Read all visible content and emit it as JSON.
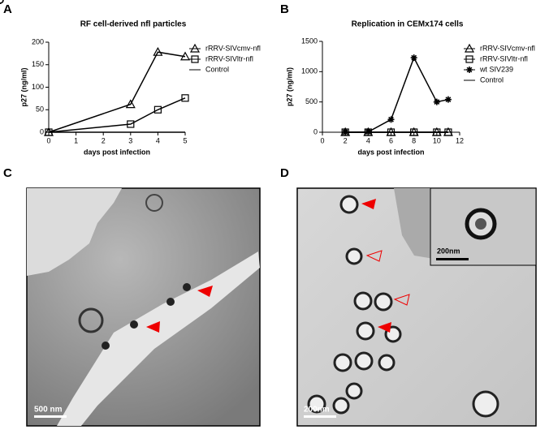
{
  "panels": [
    "A",
    "B",
    "C",
    "D"
  ],
  "images": {
    "c_scale": "500 nm",
    "d_scale": "200nm",
    "d_inset_scale": "200nm"
  },
  "chart_data": [
    {
      "type": "line",
      "title": "RF cell-derived nfl particles",
      "xlabel": "days post infection",
      "ylabel": "p27 (ng/ml)",
      "x": [
        0,
        3,
        4,
        5
      ],
      "xlim": [
        0,
        5
      ],
      "xticks": [
        0,
        1,
        2,
        3,
        4,
        5
      ],
      "ylim": [
        0,
        200
      ],
      "yticks": [
        0,
        50,
        100,
        150,
        200
      ],
      "series": [
        {
          "name": "rRRV-SIVcmv-nfl",
          "color": "#000000",
          "marker": "triangle",
          "values": [
            0,
            62,
            178,
            168
          ]
        },
        {
          "name": "rRRV-SIVltr-nfl",
          "color": "#000000",
          "marker": "square",
          "values": [
            0,
            18,
            50,
            76
          ]
        },
        {
          "name": "Control",
          "color": "#000000",
          "marker": "circle",
          "values": [
            0,
            0,
            0,
            0
          ]
        }
      ]
    },
    {
      "type": "line",
      "title": "Replication in CEMx174 cells",
      "xlabel": "days post infection",
      "ylabel": "p27 (ng/ml)",
      "x": [
        2,
        4,
        6,
        8,
        10,
        11
      ],
      "xlim": [
        0,
        12
      ],
      "xticks": [
        0,
        2,
        4,
        6,
        8,
        10,
        12
      ],
      "ylim": [
        0,
        1500
      ],
      "yticks": [
        0,
        500,
        1000,
        1500
      ],
      "series": [
        {
          "name": "rRRV-SIVcmv-nfl",
          "color": "#000000",
          "marker": "triangle",
          "values": [
            0,
            0,
            0,
            0,
            0,
            0
          ]
        },
        {
          "name": "rRRV-SIVltr-nfl",
          "color": "#000000",
          "marker": "square",
          "values": [
            0,
            0,
            0,
            0,
            0,
            0
          ]
        },
        {
          "name": "wt SIV239",
          "color": "#000000",
          "marker": "star",
          "values": [
            0,
            5,
            210,
            1230,
            500,
            540
          ]
        },
        {
          "name": "Control",
          "color": "#000000",
          "marker": "circle",
          "values": [
            0,
            0,
            0,
            0,
            0,
            0
          ]
        }
      ]
    }
  ]
}
